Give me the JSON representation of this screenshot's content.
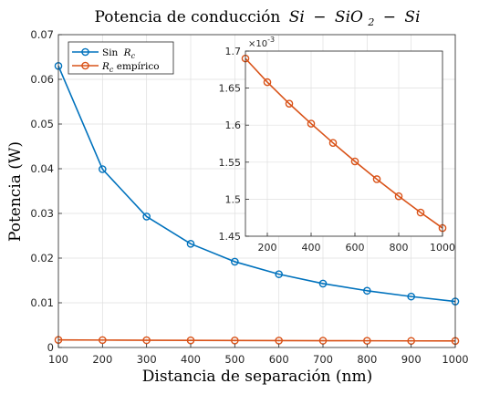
{
  "chart_data": [
    {
      "type": "line",
      "title": "Potencia de conducción Si − SiO2 − Si",
      "title_parts": {
        "prefix": "Potencia de conducción",
        "math_a": "Si",
        "math_b": "SiO",
        "sub": "2",
        "math_c": "Si"
      },
      "xlabel": "Distancia de separación (nm)",
      "ylabel": "Potencia (W)",
      "x": [
        100,
        200,
        300,
        400,
        500,
        600,
        700,
        800,
        900,
        1000
      ],
      "xlim": [
        100,
        1000
      ],
      "ylim": [
        0,
        0.07
      ],
      "xticks": [
        "100",
        "200",
        "300",
        "400",
        "500",
        "600",
        "700",
        "800",
        "900",
        "1000"
      ],
      "yticks": [
        "0",
        "0.01",
        "0.02",
        "0.03",
        "0.04",
        "0.05",
        "0.06",
        "0.07"
      ],
      "grid": true,
      "legend": "top-left",
      "series": [
        {
          "name": "Sin Rc",
          "label_prefix": "Sin",
          "label_var": "R",
          "label_sub": "c",
          "label_suffix": "",
          "color": "#0072BD",
          "values": [
            0.063,
            0.0399,
            0.0293,
            0.0232,
            0.0192,
            0.0164,
            0.0143,
            0.0127,
            0.0114,
            0.0103
          ]
        },
        {
          "name": "Rc empírico",
          "label_prefix": "",
          "label_var": "R",
          "label_sub": "c",
          "label_suffix": " empírico",
          "color": "#D95319",
          "values": [
            0.00169,
            0.001658,
            0.001629,
            0.001602,
            0.001576,
            0.001551,
            0.001527,
            0.001504,
            0.001482,
            0.001461
          ]
        }
      ]
    },
    {
      "type": "line",
      "title": "",
      "x": [
        100,
        200,
        300,
        400,
        500,
        600,
        700,
        800,
        900,
        1000
      ],
      "xlim": [
        100,
        1000
      ],
      "ylim": [
        1.45,
        1.7
      ],
      "scale_exponent": "×10",
      "scale_power": "-3",
      "xticks": [
        "200",
        "400",
        "600",
        "800",
        "1000"
      ],
      "yticks": [
        "1.45",
        "1.5",
        "1.55",
        "1.6",
        "1.65",
        "1.7"
      ],
      "grid": true,
      "series": [
        {
          "color": "#D95319",
          "values": [
            1.69,
            1.658,
            1.629,
            1.602,
            1.576,
            1.551,
            1.527,
            1.504,
            1.482,
            1.461
          ]
        }
      ]
    }
  ]
}
